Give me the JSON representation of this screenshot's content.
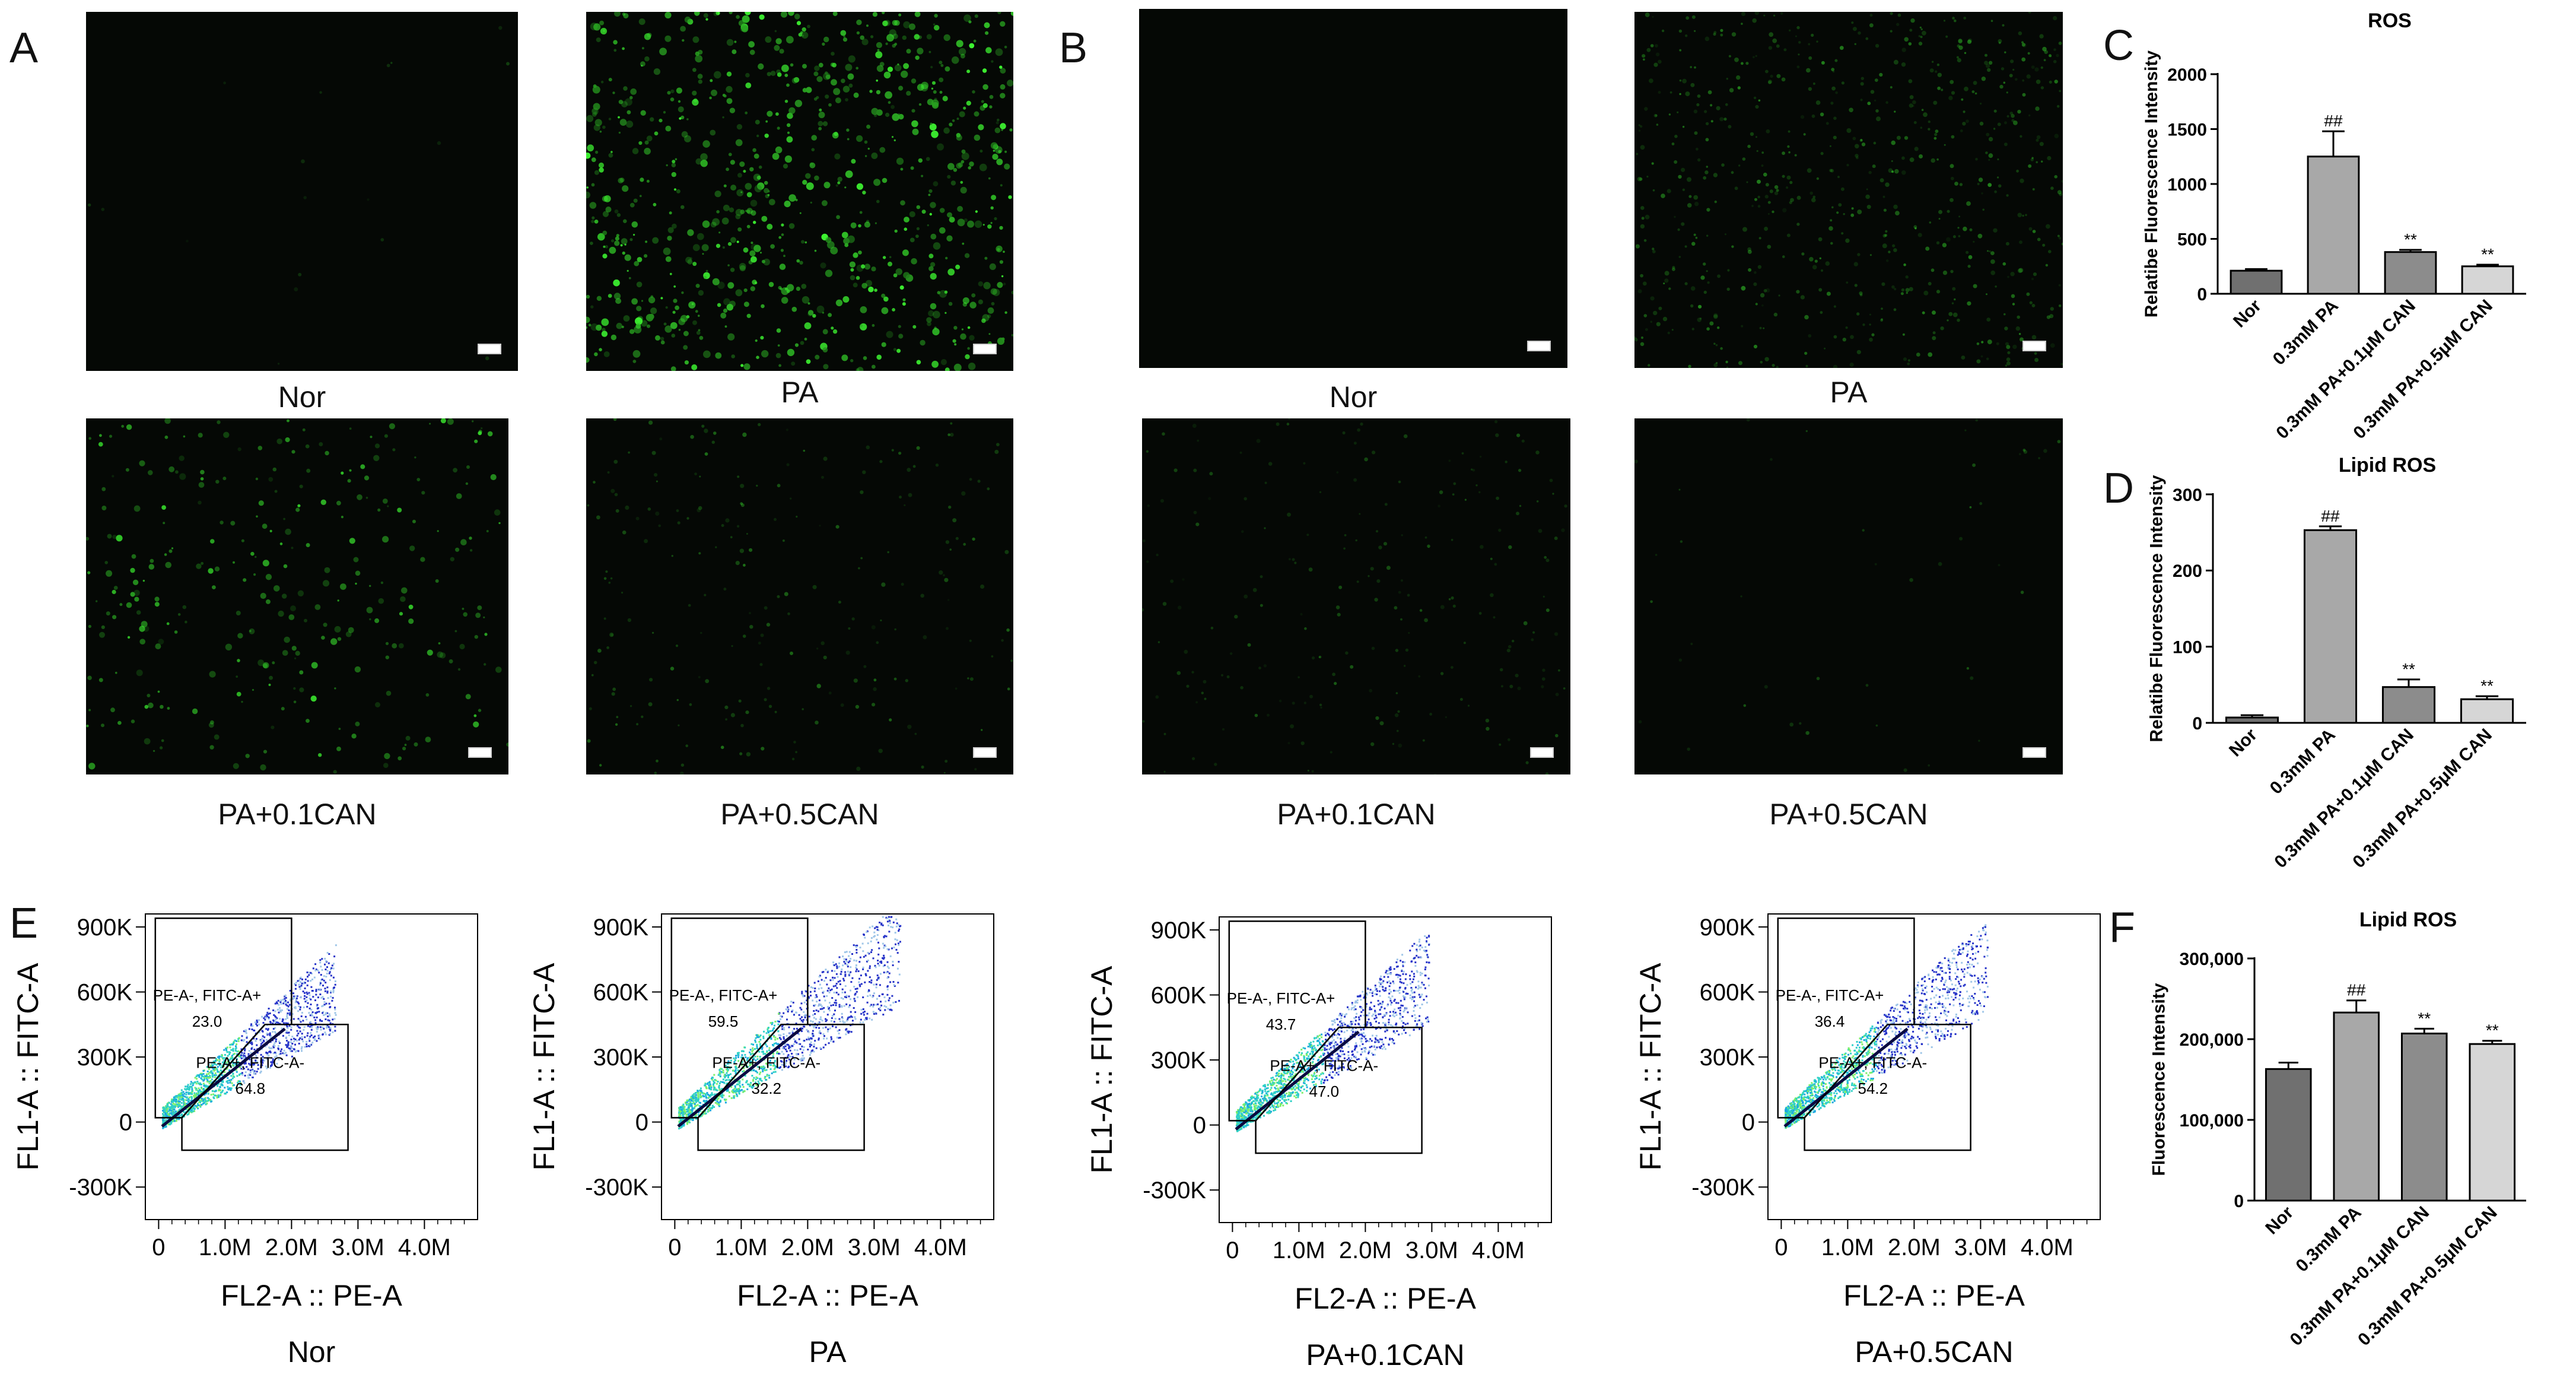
{
  "panels": {
    "A": {
      "letter": "A",
      "captions": [
        "Nor",
        "PA",
        "PA+0.1CAN",
        "PA+0.5CAN"
      ]
    },
    "B": {
      "letter": "B",
      "captions": [
        "Nor",
        "PA",
        "PA+0.1CAN",
        "PA+0.5CAN"
      ]
    },
    "C": {
      "letter": "C"
    },
    "D": {
      "letter": "D"
    },
    "E": {
      "letter": "E"
    },
    "F": {
      "letter": "F"
    }
  },
  "chart_data": [
    {
      "id": "C",
      "type": "bar",
      "title": "ROS",
      "ylabel": "Relatibe Fluorescence Intensity",
      "categories": [
        "Nor",
        "0.3mM PA",
        "0.3mM PA+0.1μM CAN",
        "0.3mM PA+0.5μM CAN"
      ],
      "values": [
        210,
        1250,
        380,
        250
      ],
      "errors": [
        15,
        230,
        20,
        15
      ],
      "annotations": [
        "",
        "##",
        "**",
        "**"
      ],
      "ylim": [
        0,
        2000
      ],
      "yticks": [
        "0",
        "500",
        "1000",
        "1500",
        "2000"
      ],
      "colors": [
        "#707070",
        "#a8a8a8",
        "#8c8c8c",
        "#d6d6d6"
      ]
    },
    {
      "id": "D",
      "type": "bar",
      "title": "Lipid ROS",
      "ylabel": "Relatibe Fluorescence Intensity",
      "categories": [
        "Nor",
        "0.3mM PA",
        "0.3mM PA+0.1μM CAN",
        "0.3mM PA+0.5μM CAN"
      ],
      "values": [
        7,
        253,
        47,
        31
      ],
      "errors": [
        3,
        5,
        10,
        4
      ],
      "annotations": [
        "",
        "##",
        "**",
        "**"
      ],
      "ylim": [
        0,
        300
      ],
      "yticks": [
        "0",
        "100",
        "200",
        "300"
      ],
      "colors": [
        "#707070",
        "#a8a8a8",
        "#8c8c8c",
        "#d6d6d6"
      ]
    },
    {
      "id": "F",
      "type": "bar",
      "title": "Lipid ROS",
      "ylabel": "Fluorescence Intensity",
      "categories": [
        "Nor",
        "0.3mM PA",
        "0.3mM PA+0.1μM CAN",
        "0.3mM PA+0.5μM CAN"
      ],
      "values": [
        163000,
        233000,
        207000,
        194000
      ],
      "errors": [
        8000,
        15000,
        6000,
        4000
      ],
      "annotations": [
        "",
        "##",
        "**",
        "**"
      ],
      "ylim": [
        0,
        300000
      ],
      "yticks": [
        "0",
        "100,000",
        "200,000",
        "300,000"
      ],
      "colors": [
        "#707070",
        "#a8a8a8",
        "#8c8c8c",
        "#d6d6d6"
      ]
    },
    {
      "id": "E",
      "type": "scatter",
      "xlabel": "FL2-A :: PE-A",
      "ylabel": "FL1-A :: FITC-A",
      "xticks": [
        "0",
        "1.0M",
        "2.0M",
        "3.0M",
        "4.0M"
      ],
      "yticks": [
        "-300K",
        "0",
        "300K",
        "600K",
        "900K"
      ],
      "plots": [
        {
          "sample": "Nor",
          "gate1_label": "PE-A-, FITC-A+",
          "gate1_value": "23.0",
          "gate2_label": "PE-A+, FITC-A-",
          "gate2_value": "64.8"
        },
        {
          "sample": "PA",
          "gate1_label": "PE-A-, FITC-A+",
          "gate1_value": "59.5",
          "gate2_label": "PE-A+, FITC-A-",
          "gate2_value": "32.2"
        },
        {
          "sample": "PA+0.1CAN",
          "gate1_label": "PE-A-, FITC-A+",
          "gate1_value": "43.7",
          "gate2_label": "PE-A+, FITC-A-",
          "gate2_value": "47.0"
        },
        {
          "sample": "PA+0.5CAN",
          "gate1_label": "PE-A-, FITC-A+",
          "gate1_value": "36.4",
          "gate2_label": "PE-A+, FITC-A-",
          "gate2_value": "54.2"
        }
      ]
    }
  ]
}
